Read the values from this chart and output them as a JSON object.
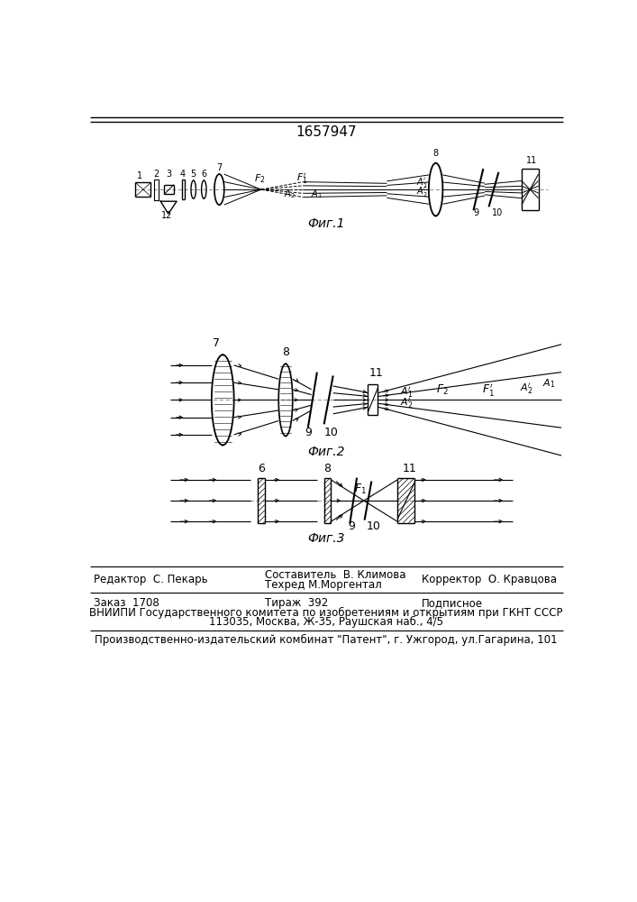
{
  "title_number": "1657947",
  "fig1_label": "Фиг.1",
  "fig2_label": "Фиг.2",
  "fig3_label": "Фиг.3",
  "editor_line": "Редактор  С. Пекарь",
  "composer_line": "Составитель  В. Климова",
  "techred_line": "Техред М.Моргентал",
  "corrector_line": "Корректор  О. Кравцова",
  "order_line": "Заказ  1708",
  "tirazh_line": "Тираж  392",
  "podpisnoe_line": "Подписное",
  "vniiipi_line": "ВНИИПИ Государственного комитета по изобретениям и открытиям при ГКНТ СССР",
  "address_line": "113035, Москва, Ж-35, Раушская наб., 4/5",
  "factory_line": "Производственно-издательский комбинат \"Патент\", г. Ужгород, ул.Гагарина, 101",
  "bg_color": "#ffffff",
  "line_color": "#000000",
  "text_color": "#000000"
}
